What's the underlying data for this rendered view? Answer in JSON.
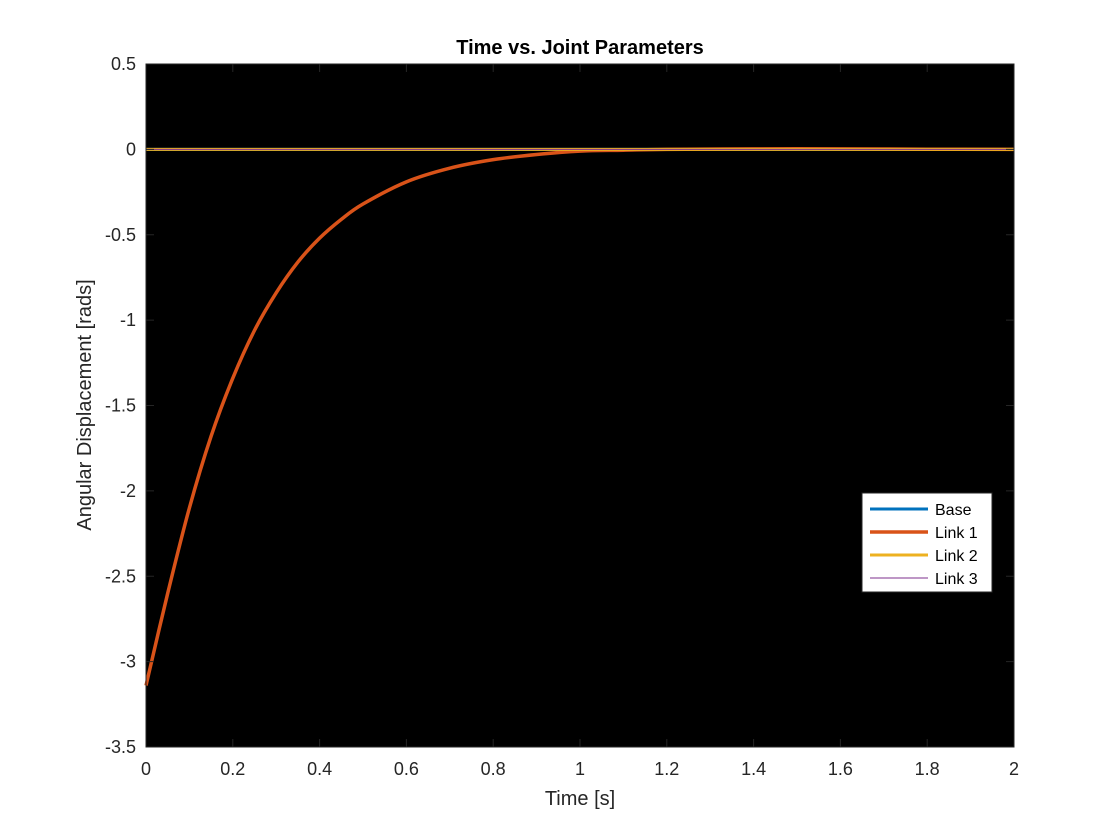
{
  "chart_data": {
    "type": "line",
    "title": "Time vs. Joint Parameters",
    "xlabel": "Time [s]",
    "ylabel": "Angular Displacement [rads]",
    "xlim": [
      0,
      2
    ],
    "ylim": [
      -3.5,
      0.5
    ],
    "xticks": [
      "0",
      "0.2",
      "0.4",
      "0.6",
      "0.8",
      "1",
      "1.2",
      "1.4",
      "1.6",
      "1.8",
      "2"
    ],
    "yticks": [
      "0.5",
      "0",
      "-0.5",
      "-1",
      "-1.5",
      "-2",
      "-2.5",
      "-3",
      "-3.5"
    ],
    "background": "#000000",
    "legend_position": "right",
    "series": [
      {
        "name": "Base",
        "color": "#0072BD",
        "x": [
          0,
          2
        ],
        "y": [
          0,
          0
        ]
      },
      {
        "name": "Link 1",
        "color": "#D95319",
        "x": [
          0,
          0.05,
          0.1,
          0.15,
          0.2,
          0.25,
          0.3,
          0.35,
          0.4,
          0.45,
          0.5,
          0.6,
          0.7,
          0.8,
          0.9,
          1.0,
          1.1,
          1.2,
          1.4,
          1.6,
          1.8,
          2.0
        ],
        "y": [
          -3.14,
          -2.6,
          -2.1,
          -1.68,
          -1.34,
          -1.06,
          -0.84,
          -0.66,
          -0.52,
          -0.41,
          -0.32,
          -0.19,
          -0.11,
          -0.06,
          -0.03,
          -0.01,
          -0.005,
          0,
          0.003,
          0.003,
          0.001,
          0
        ]
      },
      {
        "name": "Link 2",
        "color": "#EDB120",
        "x": [
          0,
          2
        ],
        "y": [
          0,
          0
        ]
      },
      {
        "name": "Link 3",
        "color": "#7E2F8E",
        "x": [
          0,
          2
        ],
        "y": [
          0,
          0
        ]
      }
    ]
  }
}
